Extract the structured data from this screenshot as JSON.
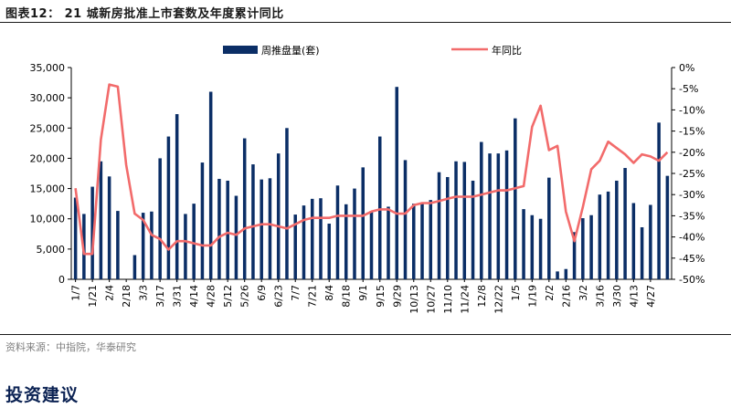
{
  "figure_title": "图表12： 21 城新房批准上市套数及年度累计同比",
  "source": "资料来源：中指院，华泰研究",
  "section_heading": "投资建议",
  "chart_data": {
    "type": "bar+line",
    "title": "21 城新房批准上市套数及年度累计同比",
    "legend": {
      "placement": "top",
      "items": [
        "周推盘量(套)",
        "年同比"
      ]
    },
    "colors": {
      "bar": "#0b2e66",
      "line": "#f26b6b"
    },
    "y_left": {
      "label": "周推盘量(套)",
      "min": 0,
      "max": 35000,
      "ticks": [
        "0",
        "5,000",
        "10,000",
        "15,000",
        "20,000",
        "25,000",
        "30,000",
        "35,000"
      ],
      "tick_values": [
        0,
        5000,
        10000,
        15000,
        20000,
        25000,
        30000,
        35000
      ]
    },
    "y_right": {
      "label": "年同比",
      "min": -50,
      "max": 0,
      "ticks": [
        "-50%",
        "-45%",
        "-40%",
        "-35%",
        "-30%",
        "-25%",
        "-20%",
        "-15%",
        "-10%",
        "-5%",
        "0%"
      ],
      "tick_values": [
        -50,
        -45,
        -40,
        -35,
        -30,
        -25,
        -20,
        -15,
        -10,
        -5,
        0
      ]
    },
    "x_tick_labels": [
      "1/7",
      "1/21",
      "2/4",
      "2/18",
      "3/3",
      "3/17",
      "3/31",
      "4/14",
      "4/28",
      "5/12",
      "5/26",
      "6/9",
      "6/23",
      "7/7",
      "7/21",
      "8/4",
      "8/18",
      "9/1",
      "9/15",
      "9/29",
      "10/13",
      "10/27",
      "11/10",
      "11/24",
      "12/8",
      "12/22",
      "1/5",
      "1/19",
      "2/2",
      "2/16",
      "3/2",
      "3/16",
      "3/30",
      "4/13",
      "4/27"
    ],
    "series": [
      {
        "name": "周推盘量(套)",
        "kind": "bar",
        "axis": "left",
        "values": [
          13500,
          10800,
          15300,
          19500,
          17000,
          11300,
          0,
          4000,
          11000,
          11200,
          20000,
          23600,
          27300,
          10800,
          12500,
          19300,
          31000,
          16600,
          16300,
          13800,
          23300,
          19000,
          16500,
          16700,
          20800,
          25000,
          10700,
          12200,
          13300,
          13400,
          9200,
          15500,
          12400,
          15000,
          18500,
          11300,
          23600,
          12000,
          31800,
          19700,
          12500,
          12500,
          13100,
          17700,
          16900,
          19500,
          19400,
          16300,
          22700,
          20800,
          20800,
          21300,
          26600,
          11600,
          10600,
          10000,
          16800,
          1300,
          1700,
          7800,
          10100,
          10600,
          14000,
          14500,
          16300,
          18400,
          12600,
          8600,
          12300,
          25900,
          17100
        ]
      },
      {
        "name": "年同比",
        "kind": "line",
        "axis": "right",
        "values": [
          -28.5,
          -44,
          -44,
          -17,
          -4,
          -4.5,
          -23,
          -34.5,
          -36,
          -39.5,
          -40.5,
          -43,
          -41,
          -41,
          -41.5,
          -42,
          -42,
          -40,
          -39,
          -39.5,
          -38,
          -37.5,
          -37,
          -37,
          -37.5,
          -38,
          -37,
          -36,
          -35.5,
          -35.5,
          -35.5,
          -35,
          -35,
          -35,
          -35,
          -34,
          -33.5,
          -33.5,
          -34.5,
          -34.5,
          -32.5,
          -32,
          -32,
          -31.5,
          -31,
          -30.5,
          -30.5,
          -30.5,
          -30,
          -29.5,
          -29,
          -29,
          -28.5,
          -28,
          -14,
          -9,
          -19.5,
          -18.5,
          -34,
          -41,
          -33,
          -24,
          -22,
          -17.5,
          -19,
          -20.5,
          -22.5,
          -20.5,
          -21,
          -22,
          -20
        ]
      }
    ]
  }
}
